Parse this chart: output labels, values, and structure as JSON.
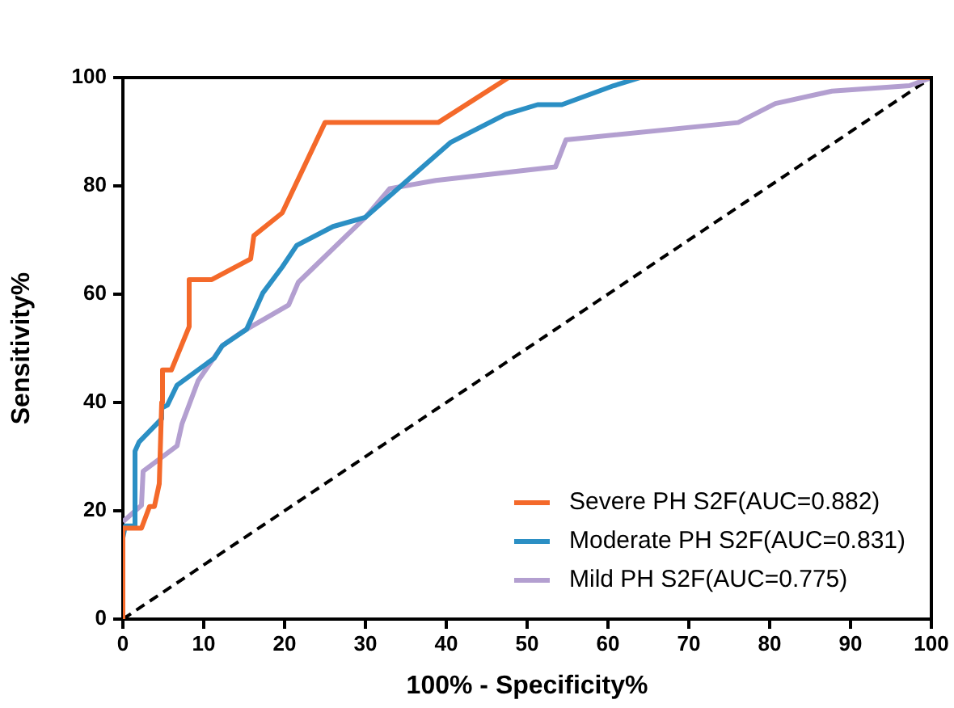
{
  "chart_data": {
    "type": "line",
    "xlabel": "100% - Specificity%",
    "ylabel": "Sensitivity%",
    "xlim": [
      0,
      100
    ],
    "ylim": [
      0,
      100
    ],
    "xticks": [
      0,
      10,
      20,
      30,
      40,
      50,
      60,
      70,
      80,
      90,
      100
    ],
    "yticks": [
      0,
      20,
      40,
      60,
      80,
      100
    ],
    "grid": false,
    "legend": "bottom right",
    "marker": "none",
    "series": [
      {
        "name": "Severe PH S2F(AUC=0.882)",
        "color": "#f4692a",
        "line_style": "solid",
        "x": [
          0,
          0,
          2.3,
          3.3,
          3.9,
          4.5,
          4.8,
          4.9,
          6,
          8.2,
          8.2,
          11,
          15.8,
          16.2,
          19.7,
          25,
          39,
          47.7,
          100
        ],
        "values": [
          0,
          16.8,
          16.8,
          20.8,
          20.8,
          25,
          40,
          46,
          46,
          54,
          62.7,
          62.7,
          66.5,
          70.8,
          75,
          91.7,
          91.7,
          100,
          100
        ]
      },
      {
        "name": "Moderate PH S2F(AUC=0.831)",
        "color": "#2b8fc4",
        "line_style": "solid",
        "x": [
          0,
          0.3,
          1.5,
          1.5,
          2,
          4.8,
          4.8,
          5.5,
          6.7,
          11.3,
          12.3,
          15.3,
          17.3,
          19.7,
          21.5,
          26,
          30,
          40.5,
          47.3,
          51.3,
          54.3,
          60.7,
          64
        ],
        "values": [
          15,
          17.2,
          17.2,
          31,
          32.7,
          37,
          39,
          39.5,
          43.2,
          48.2,
          50.5,
          53.5,
          60.2,
          65,
          69,
          72.5,
          74.2,
          88,
          93.2,
          95,
          95,
          98.5,
          100
        ]
      },
      {
        "name": "Mild PH S2F(AUC=0.775)",
        "color": "#b39fd0",
        "line_style": "solid",
        "x": [
          0,
          2.3,
          2.5,
          6.7,
          7.3,
          9.3,
          12.3,
          14.7,
          20.5,
          21.7,
          30,
          33,
          38.7,
          53.5,
          54.8,
          76.1,
          80.7,
          87.7,
          97.3,
          100
        ],
        "values": [
          18,
          21,
          27.3,
          32,
          36,
          44,
          50.5,
          53,
          58,
          62.2,
          74.2,
          79.5,
          81,
          83.5,
          88.5,
          91.7,
          95.2,
          97.5,
          98.5,
          100
        ]
      },
      {
        "color": "#000000",
        "line_style": "dashed",
        "x": [
          0,
          100
        ],
        "values": [
          0,
          100
        ]
      }
    ]
  }
}
